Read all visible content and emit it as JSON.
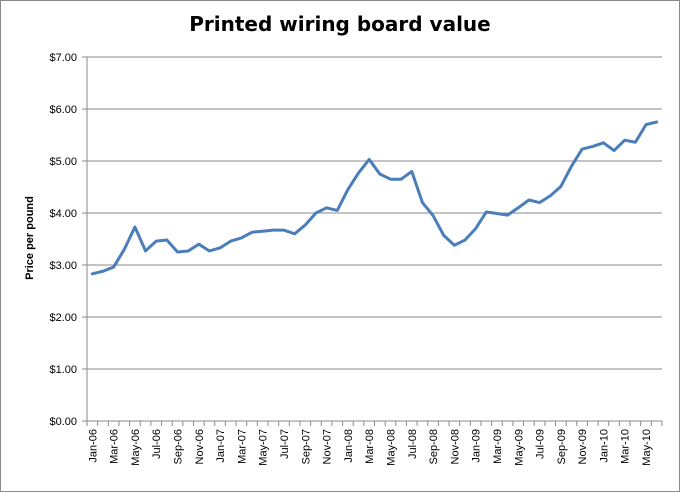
{
  "chart_data": {
    "type": "line",
    "title": "Printed wiring board value",
    "ylabel": "Price per pound",
    "xlabel": "",
    "ylim": [
      0,
      7
    ],
    "y_ticks": [
      "$0.00",
      "$1.00",
      "$2.00",
      "$3.00",
      "$4.00",
      "$5.00",
      "$6.00",
      "$7.00"
    ],
    "x_tick_labels": [
      "Jan-06",
      "Mar-06",
      "May-06",
      "Jul-06",
      "Sep-06",
      "Nov-06",
      "Jan-07",
      "Mar-07",
      "May-07",
      "Jul-07",
      "Sep-07",
      "Nov-07",
      "Jan-08",
      "Mar-08",
      "May-08",
      "Jul-08",
      "Sep-08",
      "Nov-08",
      "Jan-09",
      "Mar-09",
      "May-09",
      "Jul-09",
      "Sep-09",
      "Nov-09",
      "Jan-10",
      "Mar-10",
      "May-10"
    ],
    "grid": "horizontal",
    "legend": "none",
    "line_color": "#4a7ebb",
    "series": [
      {
        "x": [
          "Jan-06",
          "Feb-06",
          "Mar-06",
          "Apr-06",
          "May-06",
          "Jun-06",
          "Jul-06",
          "Aug-06",
          "Sep-06",
          "Oct-06",
          "Nov-06",
          "Dec-06",
          "Jan-07",
          "Feb-07",
          "Mar-07",
          "Apr-07",
          "May-07",
          "Jun-07",
          "Jul-07",
          "Aug-07",
          "Sep-07",
          "Oct-07",
          "Nov-07",
          "Dec-07",
          "Jan-08",
          "Feb-08",
          "Mar-08",
          "Apr-08",
          "May-08",
          "Jun-08",
          "Jul-08",
          "Aug-08",
          "Sep-08",
          "Oct-08",
          "Nov-08",
          "Dec-08",
          "Jan-09",
          "Feb-09",
          "Mar-09",
          "Apr-09",
          "May-09",
          "Jun-09",
          "Jul-09",
          "Aug-09",
          "Sep-09",
          "Oct-09",
          "Nov-09",
          "Dec-09",
          "Jan-10",
          "Feb-10",
          "Mar-10",
          "Apr-10",
          "May-10",
          "Jun-10"
        ],
        "values": [
          2.83,
          2.88,
          2.96,
          3.3,
          3.73,
          3.27,
          3.46,
          3.48,
          3.25,
          3.27,
          3.4,
          3.27,
          3.33,
          3.46,
          3.52,
          3.63,
          3.65,
          3.67,
          3.67,
          3.6,
          3.77,
          4.0,
          4.1,
          4.05,
          4.45,
          4.77,
          5.03,
          4.75,
          4.65,
          4.65,
          4.8,
          4.2,
          3.95,
          3.57,
          3.38,
          3.48,
          3.7,
          4.02,
          3.99,
          3.96,
          4.1,
          4.25,
          4.2,
          4.33,
          4.51,
          4.9,
          5.23,
          5.28,
          5.35,
          5.2,
          5.4,
          5.36,
          5.7,
          5.75
        ]
      }
    ]
  }
}
